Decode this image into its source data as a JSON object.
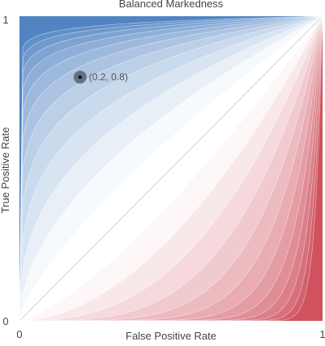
{
  "chart_data": {
    "type": "contour",
    "title": "Balanced Markedness",
    "xlabel": "False Positive Rate",
    "ylabel": "True Positive Rate",
    "xlim": [
      0,
      1
    ],
    "ylim": [
      0,
      1
    ],
    "x_ticks": [
      "0",
      "1"
    ],
    "y_ticks": [
      "0",
      "1"
    ],
    "contour_levels": 12,
    "colors": {
      "positive": "#4a7fc0",
      "neutral": "#ffffff",
      "negative": "#cd4a57",
      "line": "#c9c9c9"
    },
    "point": {
      "x": 0.2,
      "y": 0.8,
      "label": "(0.2, 0.8)"
    }
  }
}
